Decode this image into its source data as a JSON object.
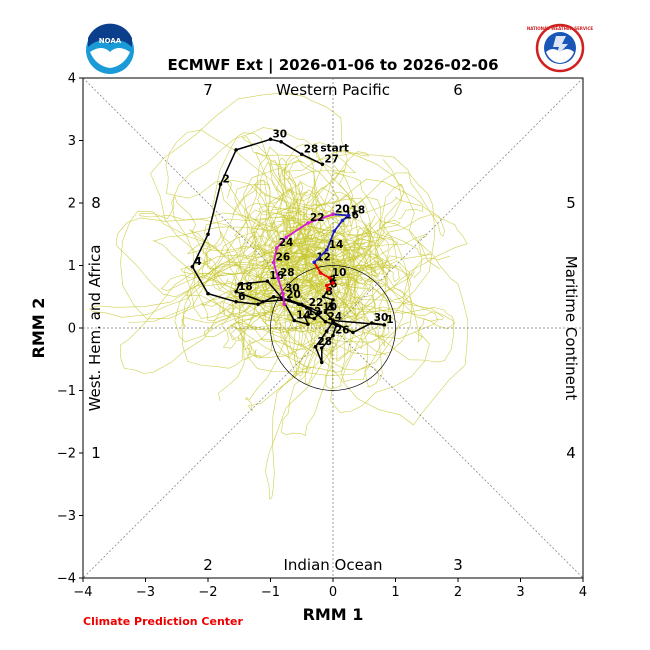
{
  "chart_data": {
    "type": "line",
    "title": "ECMWF Ext | 2026-01-06 to 2026-02-06",
    "xlabel": "RMM 1",
    "ylabel": "RMM 2",
    "xlim": [
      -4,
      4
    ],
    "ylim": [
      -4,
      4
    ],
    "xticks": [
      "−4",
      "−3",
      "−2",
      "−1",
      "0",
      "1",
      "2",
      "3",
      "4"
    ],
    "yticks": [
      "−4",
      "−3",
      "−2",
      "−1",
      "0",
      "1",
      "2",
      "3",
      "4"
    ],
    "regions": {
      "top": "Western Pacific",
      "bottom": "Indian Ocean",
      "left": "West. Hem. and Africa",
      "right": "Maritime Continent"
    },
    "phases": {
      "p1": "1",
      "p2": "2",
      "p3": "3",
      "p4": "4",
      "p5": "5",
      "p6": "6",
      "p7": "7",
      "p8": "8"
    },
    "credit": "Climate Prediction Center",
    "colors": {
      "observed": "#000000",
      "ensemble": "#c8c832",
      "forecast_week1": "#ee0000",
      "forecast_week2": "#1f1fbf",
      "forecast_week3": "#d21fd2"
    },
    "logos": {
      "left": "NOAA",
      "right": "NATIONAL WEATHER SERVICE"
    },
    "start_label": "start",
    "observed_path": [
      {
        "x": -0.17,
        "y": 2.62,
        "label": "27"
      },
      {
        "x": -0.5,
        "y": 2.78,
        "label": "28"
      },
      {
        "x": -0.83,
        "y": 2.98,
        "label": ""
      },
      {
        "x": -1.0,
        "y": 3.02,
        "label": "30"
      },
      {
        "x": -1.55,
        "y": 2.85,
        "label": ""
      },
      {
        "x": -1.8,
        "y": 2.3,
        "label": "2"
      },
      {
        "x": -2.0,
        "y": 1.5,
        "label": ""
      },
      {
        "x": -2.25,
        "y": 0.98,
        "label": "4"
      },
      {
        "x": -2.0,
        "y": 0.55,
        "label": ""
      },
      {
        "x": -1.55,
        "y": 0.42,
        "label": "6"
      },
      {
        "x": -1.2,
        "y": 0.38,
        "label": ""
      },
      {
        "x": -0.95,
        "y": 0.5,
        "label": ""
      },
      {
        "x": -0.7,
        "y": 0.45,
        "label": ""
      },
      {
        "x": -0.5,
        "y": 0.38,
        "label": ""
      },
      {
        "x": -0.2,
        "y": 0.25,
        "label": "10"
      },
      {
        "x": -0.3,
        "y": 0.15,
        "label": ""
      },
      {
        "x": -0.45,
        "y": 0.18,
        "label": "12"
      },
      {
        "x": -0.4,
        "y": 0.06,
        "label": ""
      },
      {
        "x": -0.62,
        "y": 0.12,
        "label": "14"
      },
      {
        "x": -0.82,
        "y": 0.48,
        "label": ""
      },
      {
        "x": -1.05,
        "y": 0.75,
        "label": "16"
      },
      {
        "x": -1.5,
        "y": 0.7,
        "label": ""
      },
      {
        "x": -1.55,
        "y": 0.58,
        "label": "18"
      },
      {
        "x": -1.12,
        "y": 0.42,
        "label": ""
      },
      {
        "x": -0.78,
        "y": 0.45,
        "label": "20"
      },
      {
        "x": -0.55,
        "y": 0.38,
        "label": ""
      },
      {
        "x": -0.42,
        "y": 0.32,
        "label": "22"
      },
      {
        "x": -0.25,
        "y": 0.22,
        "label": ""
      },
      {
        "x": -0.12,
        "y": 0.1,
        "label": "24"
      },
      {
        "x": 0.05,
        "y": 0.05,
        "label": ""
      },
      {
        "x": 0.0,
        "y": -0.12,
        "label": "26"
      },
      {
        "x": -0.18,
        "y": -0.32,
        "label": ""
      },
      {
        "x": -0.18,
        "y": -0.55,
        "label": ""
      },
      {
        "x": -0.28,
        "y": -0.3,
        "label": "28"
      },
      {
        "x": -0.1,
        "y": -0.05,
        "label": ""
      },
      {
        "x": 0.0,
        "y": 0.1,
        "label": ""
      },
      {
        "x": 0.32,
        "y": -0.07,
        "label": ""
      },
      {
        "x": 0.62,
        "y": 0.08,
        "label": "30"
      },
      {
        "x": 0.82,
        "y": 0.05,
        "label": "1"
      },
      {
        "x": 0.0,
        "y": 0.12,
        "label": ""
      },
      {
        "x": -0.12,
        "y": 0.25,
        "label": "3"
      },
      {
        "x": 0.0,
        "y": 0.45,
        "label": ""
      },
      {
        "x": -0.15,
        "y": 0.5,
        "label": "8"
      },
      {
        "x": -0.08,
        "y": 0.62,
        "label": ""
      }
    ],
    "forecast_week1": [
      {
        "x": -0.08,
        "y": 0.62,
        "label": "6"
      },
      {
        "x": -0.1,
        "y": 0.68,
        "label": "8"
      },
      {
        "x": 0.0,
        "y": 0.72,
        "label": ""
      },
      {
        "x": -0.05,
        "y": 0.8,
        "label": "10"
      },
      {
        "x": -0.2,
        "y": 0.88,
        "label": ""
      },
      {
        "x": -0.3,
        "y": 1.05,
        "label": "12"
      }
    ],
    "forecast_week2": [
      {
        "x": -0.3,
        "y": 1.05,
        "label": ""
      },
      {
        "x": -0.1,
        "y": 1.25,
        "label": "14"
      },
      {
        "x": 0.02,
        "y": 1.55,
        "label": ""
      },
      {
        "x": 0.15,
        "y": 1.72,
        "label": "16"
      },
      {
        "x": 0.25,
        "y": 1.8,
        "label": "18"
      },
      {
        "x": 0.0,
        "y": 1.82,
        "label": "20"
      }
    ],
    "forecast_week3": [
      {
        "x": 0.0,
        "y": 1.82,
        "label": ""
      },
      {
        "x": -0.4,
        "y": 1.68,
        "label": "22"
      },
      {
        "x": -0.75,
        "y": 1.45,
        "label": ""
      },
      {
        "x": -0.9,
        "y": 1.28,
        "label": "24"
      },
      {
        "x": -0.95,
        "y": 1.05,
        "label": "26"
      },
      {
        "x": -0.88,
        "y": 0.8,
        "label": "28"
      },
      {
        "x": -0.8,
        "y": 0.55,
        "label": "30"
      },
      {
        "x": -0.78,
        "y": 0.38,
        "label": ""
      }
    ]
  }
}
